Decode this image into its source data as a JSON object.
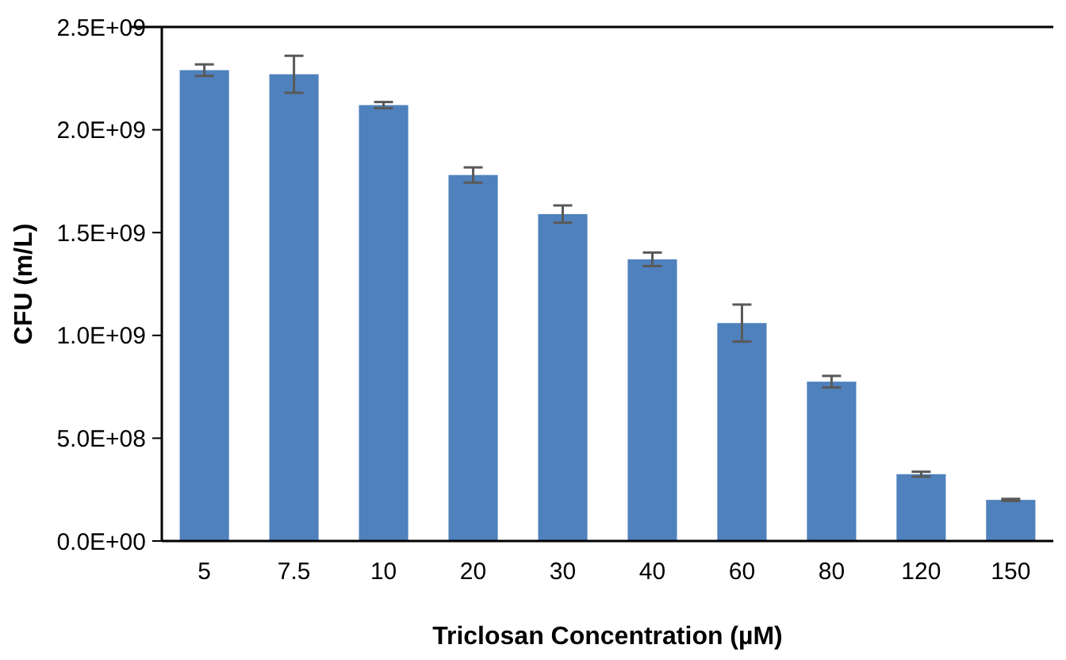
{
  "chart_data": {
    "type": "bar",
    "xlabel": "Triclosan Concentration (µM)",
    "ylabel": "CFU (m/L)",
    "categories": [
      "5",
      "7.5",
      "10",
      "20",
      "30",
      "40",
      "60",
      "80",
      "120",
      "150"
    ],
    "values": [
      2290000000.0,
      2270000000.0,
      2120000000.0,
      1780000000.0,
      1590000000.0,
      1370000000.0,
      1060000000.0,
      775000000.0,
      325000000.0,
      200000000.0
    ],
    "errors": [
      28000000.0,
      90000000.0,
      15000000.0,
      37000000.0,
      42000000.0,
      33000000.0,
      90000000.0,
      28000000.0,
      12000000.0,
      5000000.0
    ],
    "color": "#4f81bd",
    "ylim": [
      0,
      2500000000.0
    ],
    "yticks": [
      {
        "value": 0,
        "label": "0.0E+00"
      },
      {
        "value": 500000000.0,
        "label": "5.0E+08"
      },
      {
        "value": 1000000000.0,
        "label": "1.0E+09"
      },
      {
        "value": 1500000000.0,
        "label": "1.5E+09"
      },
      {
        "value": 2000000000.0,
        "label": "2.0E+09"
      },
      {
        "value": 2500000000.0,
        "label": "2.5E+09"
      }
    ],
    "grid": false
  }
}
